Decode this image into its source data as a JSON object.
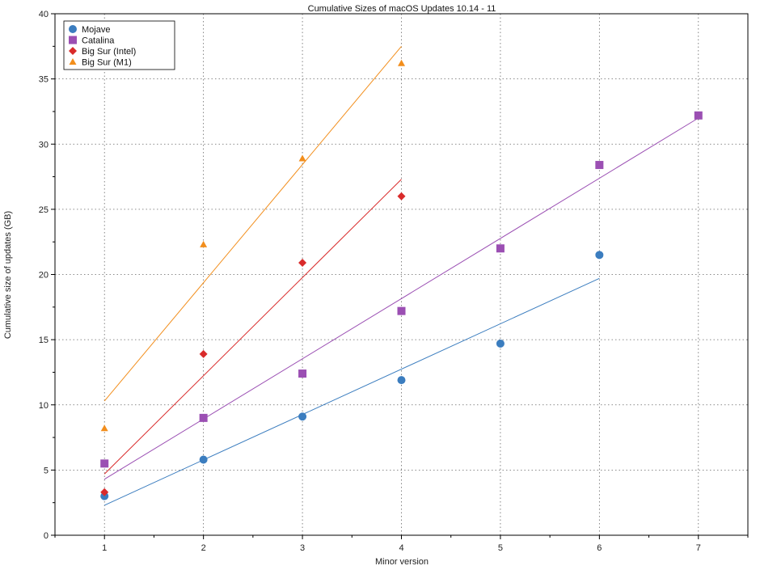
{
  "chart_data": {
    "type": "scatter",
    "title": "Cumulative Sizes of macOS Updates 10.14  - 11",
    "xlabel": "Minor version",
    "ylabel": "Cumulative size of updates (GB)",
    "xlim": [
      0.5,
      7.5
    ],
    "ylim": [
      0,
      40
    ],
    "xticks": [
      1,
      2,
      3,
      4,
      5,
      6,
      7
    ],
    "yticks": [
      0,
      5,
      10,
      15,
      20,
      25,
      30,
      35,
      40
    ],
    "grid": true,
    "legend_position": "top-left",
    "series": [
      {
        "name": "Mojave",
        "color": "#3b7dbf",
        "marker": "circle",
        "x": [
          1,
          2,
          3,
          4,
          5,
          6
        ],
        "y": [
          3.0,
          5.8,
          9.1,
          11.9,
          14.7,
          21.5
        ],
        "trend": [
          [
            1,
            2.3
          ],
          [
            6,
            19.7
          ]
        ]
      },
      {
        "name": "Catalina",
        "color": "#9b4fb3",
        "marker": "square",
        "x": [
          1,
          2,
          3,
          4,
          5,
          6,
          7
        ],
        "y": [
          5.5,
          9.0,
          12.4,
          17.2,
          22.0,
          28.4,
          32.2
        ],
        "trend": [
          [
            1,
            4.3
          ],
          [
            7,
            32.0
          ]
        ]
      },
      {
        "name": "Big Sur (Intel)",
        "color": "#d92b2b",
        "marker": "diamond",
        "x": [
          1,
          2,
          3,
          4
        ],
        "y": [
          3.3,
          13.9,
          20.9,
          26.0
        ],
        "trend": [
          [
            1,
            4.7
          ],
          [
            4,
            27.3
          ]
        ]
      },
      {
        "name": "Big Sur (M1)",
        "color": "#f28e1c",
        "marker": "triangle",
        "x": [
          1,
          2,
          3,
          4
        ],
        "y": [
          8.2,
          22.3,
          28.9,
          36.2
        ],
        "trend": [
          [
            1,
            10.3
          ],
          [
            4,
            37.5
          ]
        ]
      }
    ]
  }
}
